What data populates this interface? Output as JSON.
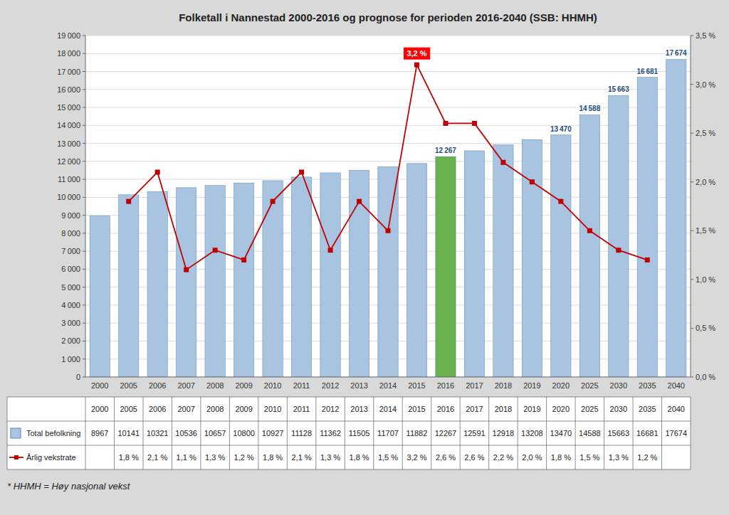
{
  "chart_data": {
    "type": "bar",
    "title": "Folketall i Nannestad 2000-2016 og prognose for perioden 2016-2040 (SSB: HHMH)",
    "footnote": "* HHMH = Høy nasjonal vekst",
    "categories": [
      "2000",
      "2005",
      "2006",
      "2007",
      "2008",
      "2009",
      "2010",
      "2011",
      "2012",
      "2013",
      "2014",
      "2015",
      "2016",
      "2017",
      "2018",
      "2019",
      "2020",
      "2025",
      "2030",
      "2035",
      "2040"
    ],
    "series": [
      {
        "name": "Total befolkning",
        "type": "bar",
        "color": "#a8c4e0",
        "colors": [
          "#a8c4e0",
          "#a8c4e0",
          "#a8c4e0",
          "#a8c4e0",
          "#a8c4e0",
          "#a8c4e0",
          "#a8c4e0",
          "#a8c4e0",
          "#a8c4e0",
          "#a8c4e0",
          "#a8c4e0",
          "#a8c4e0",
          "#6ab04c",
          "#a8c4e0",
          "#a8c4e0",
          "#a8c4e0",
          "#a8c4e0",
          "#a8c4e0",
          "#a8c4e0",
          "#a8c4e0",
          "#a8c4e0"
        ],
        "values": [
          8967,
          10141,
          10321,
          10536,
          10657,
          10800,
          10927,
          11128,
          11362,
          11505,
          11707,
          11882,
          12267,
          12591,
          12918,
          13208,
          13470,
          14588,
          15663,
          16681,
          17674
        ],
        "value_labels": [
          null,
          null,
          null,
          null,
          null,
          null,
          null,
          null,
          null,
          null,
          null,
          null,
          "12 267",
          null,
          null,
          null,
          "13 470",
          "14 588",
          "15 663",
          "16 681",
          "17 674"
        ]
      },
      {
        "name": "Årlig vekstrate",
        "type": "line",
        "axis": "y2",
        "color": "#c00000",
        "marker": "square",
        "values": [
          null,
          1.8,
          2.1,
          1.1,
          1.3,
          1.2,
          1.8,
          2.1,
          1.3,
          1.8,
          1.5,
          3.2,
          2.6,
          2.6,
          2.2,
          2.0,
          1.8,
          1.5,
          1.3,
          1.2,
          null
        ],
        "value_labels": [
          null,
          "1,8 %",
          "2,1 %",
          "1,1 %",
          "1,3 %",
          "1,2 %",
          "1,8 %",
          "2,1 %",
          "1,3 %",
          "1,8 %",
          "1,5 %",
          "3,2 %",
          "2,6 %",
          "2,6 %",
          "2,2 %",
          "2,0 %",
          "1,8 %",
          "1,5 %",
          "1,3 %",
          "1,2 %",
          null
        ]
      }
    ],
    "annotations": [
      {
        "text": "3,2 %",
        "category": "2015",
        "value": 3.2,
        "axis": "y2",
        "color": "red"
      }
    ],
    "ylim": [
      0,
      19000
    ],
    "yticks": [
      0,
      {
        "value": 1000,
        "label": "1 000"
      },
      {
        "value": 2000,
        "label": "2 000"
      },
      {
        "value": 3000,
        "label": "3 000"
      },
      {
        "value": 4000,
        "label": "4 000"
      },
      {
        "value": 5000,
        "label": "5 000"
      },
      {
        "value": 6000,
        "label": "6 000"
      },
      {
        "value": 7000,
        "label": "7 000"
      },
      {
        "value": 8000,
        "label": "8 000"
      },
      {
        "value": 9000,
        "label": "9 000"
      },
      {
        "value": 10000,
        "label": "10 000"
      },
      {
        "value": 11000,
        "label": "11 000"
      },
      {
        "value": 12000,
        "label": "12 000"
      },
      {
        "value": 13000,
        "label": "13 000"
      },
      {
        "value": 14000,
        "label": "14 000"
      },
      {
        "value": 15000,
        "label": "15 000"
      },
      {
        "value": 16000,
        "label": "16 000"
      },
      {
        "value": 17000,
        "label": "17 000"
      },
      {
        "value": 18000,
        "label": "18 000"
      },
      {
        "value": 19000,
        "label": "19 000"
      }
    ],
    "y2lim": [
      0.0,
      3.5
    ],
    "y2ticks": [
      {
        "value": 0.0,
        "label": "0,0 %"
      },
      {
        "value": 0.5,
        "label": "0,5 %"
      },
      {
        "value": 1.0,
        "label": "1,0 %"
      },
      {
        "value": 1.5,
        "label": "1,5 %"
      },
      {
        "value": 2.0,
        "label": "2,0 %"
      },
      {
        "value": 2.5,
        "label": "2,5 %"
      },
      {
        "value": 3.0,
        "label": "3,0 %"
      },
      {
        "value": 3.5,
        "label": "3,5 %"
      }
    ],
    "grid": true
  }
}
